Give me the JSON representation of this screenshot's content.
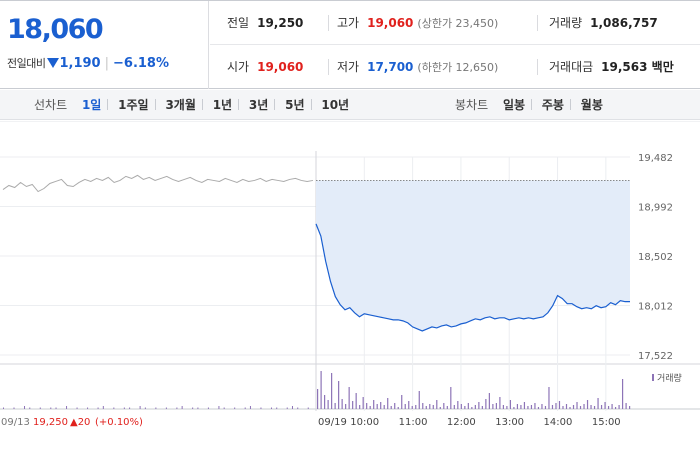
{
  "quote": {
    "price": "18,060",
    "diff_label": "전일대비",
    "diff_amount": "1,190",
    "diff_rate": "−6.18%",
    "prev_close_label": "전일",
    "prev_close": "19,250",
    "high_label": "고가",
    "high": "19,060",
    "upper_limit_note": "(상한가 23,450)",
    "volume_label": "거래량",
    "volume": "1,086,757",
    "open_label": "시가",
    "open": "19,060",
    "low_label": "저가",
    "low": "17,700",
    "lower_limit_note": "(하한가 12,650)",
    "amount_label": "거래대금",
    "amount": "19,563 백만"
  },
  "period_bar": {
    "line_title": "선차트",
    "line_options": [
      "1일",
      "1주일",
      "3개월",
      "1년",
      "3년",
      "5년",
      "10년"
    ],
    "line_active": 0,
    "candle_title": "봉차트",
    "candle_options": [
      "일봉",
      "주봉",
      "월봉"
    ]
  },
  "colors": {
    "up": "#e0211d",
    "down": "#1a5fd0",
    "fill": "#e3ecf9",
    "prev_line": "#aaaaaa",
    "volume": "#8d74b7"
  },
  "chart_data": [
    {
      "type": "line",
      "title": "",
      "y_ticks": [
        "19,482",
        "18,992",
        "18,502",
        "18,012",
        "17,522"
      ],
      "ylim": [
        17522,
        19482
      ],
      "reference_value": 19250,
      "prev_day": {
        "date": "09/13",
        "close": "19,250",
        "change": "20",
        "rate": "(+0.10%)",
        "values": [
          19160,
          19200,
          19180,
          19230,
          19190,
          19210,
          19140,
          19170,
          19220,
          19240,
          19260,
          19200,
          19190,
          19230,
          19260,
          19240,
          19270,
          19250,
          19280,
          19230,
          19250,
          19290,
          19270,
          19300,
          19260,
          19280,
          19250,
          19270,
          19290,
          19260,
          19240,
          19260,
          19280,
          19250,
          19230,
          19260,
          19250,
          19240,
          19270,
          19250,
          19230,
          19260,
          19240,
          19250,
          19270,
          19240,
          19260,
          19250,
          19240,
          19260,
          19270,
          19250,
          19240,
          19250
        ]
      },
      "today": {
        "date": "09/19",
        "x_ticks": [
          "10:00",
          "11:00",
          "12:00",
          "13:00",
          "14:00",
          "15:00"
        ],
        "values": [
          18820,
          18700,
          18450,
          18250,
          18100,
          18020,
          17970,
          17990,
          17940,
          17900,
          17930,
          17920,
          17910,
          17900,
          17890,
          17880,
          17870,
          17870,
          17860,
          17840,
          17800,
          17780,
          17760,
          17780,
          17800,
          17790,
          17810,
          17820,
          17800,
          17810,
          17830,
          17840,
          17860,
          17880,
          17870,
          17890,
          17900,
          17880,
          17890,
          17890,
          17870,
          17880,
          17890,
          17880,
          17890,
          17880,
          17890,
          17900,
          17940,
          18010,
          18110,
          18080,
          18030,
          18030,
          18000,
          17980,
          17990,
          17980,
          18010,
          17990,
          18000,
          18040,
          18020,
          18060,
          18050,
          18050
        ]
      }
    },
    {
      "type": "bar",
      "title": "",
      "series_name": "거래량",
      "prev_day_volume": [
        1,
        0,
        1,
        0,
        2,
        1,
        0,
        1,
        0,
        1,
        1,
        0,
        2,
        0,
        1,
        0,
        1,
        0,
        1,
        2,
        0,
        1,
        0,
        1,
        1,
        0,
        2,
        1,
        0,
        1,
        0,
        1,
        0,
        1,
        2,
        0,
        1,
        1,
        0,
        1,
        0,
        2,
        1,
        0,
        1,
        0,
        1,
        2,
        0,
        1,
        0,
        1,
        1,
        0,
        1,
        2,
        1,
        0,
        1,
        0
      ],
      "today_volume": [
        20,
        38,
        14,
        9,
        36,
        6,
        28,
        10,
        5,
        22,
        8,
        16,
        4,
        12,
        6,
        3,
        9,
        5,
        7,
        4,
        11,
        3,
        6,
        2,
        14,
        5,
        8,
        3,
        4,
        18,
        6,
        3,
        5,
        4,
        9,
        2,
        6,
        3,
        22,
        4,
        8,
        5,
        3,
        6,
        2,
        4,
        7,
        3,
        10,
        16,
        5,
        6,
        12,
        4,
        3,
        9,
        2,
        5,
        4,
        7,
        3,
        4,
        6,
        2,
        5,
        3,
        22,
        4,
        6,
        8,
        3,
        5,
        2,
        4,
        7,
        3,
        5,
        9,
        4,
        3,
        11,
        4,
        7,
        3,
        5,
        2,
        4,
        30,
        6,
        3
      ]
    }
  ]
}
